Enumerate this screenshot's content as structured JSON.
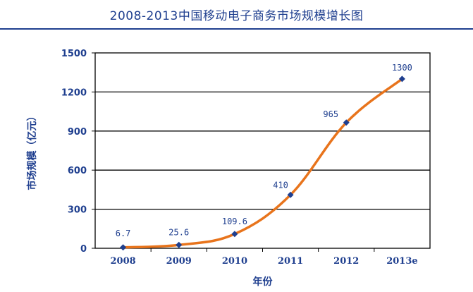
{
  "chart_data": {
    "type": "line",
    "title": "2008-2013中国移动电子商务市场规模增长图",
    "xlabel": "年份",
    "ylabel": "市场规模（亿元）",
    "categories": [
      "2008",
      "2009",
      "2010",
      "2011",
      "2012",
      "2013e"
    ],
    "series": [
      {
        "values": [
          6.7,
          25.6,
          109.6,
          410,
          965,
          1300
        ]
      }
    ],
    "data_labels": [
      "6.7",
      "25.6",
      "109.6",
      "410",
      "965",
      "1300"
    ],
    "yticks": [
      "0",
      "300",
      "600",
      "900",
      "1200",
      "1500"
    ],
    "ylim": [
      0,
      1500
    ],
    "grid": "horizontal",
    "colors": {
      "line": "#e8741c",
      "marker": "#1f3f8f",
      "text": "#1f3f8f"
    }
  }
}
